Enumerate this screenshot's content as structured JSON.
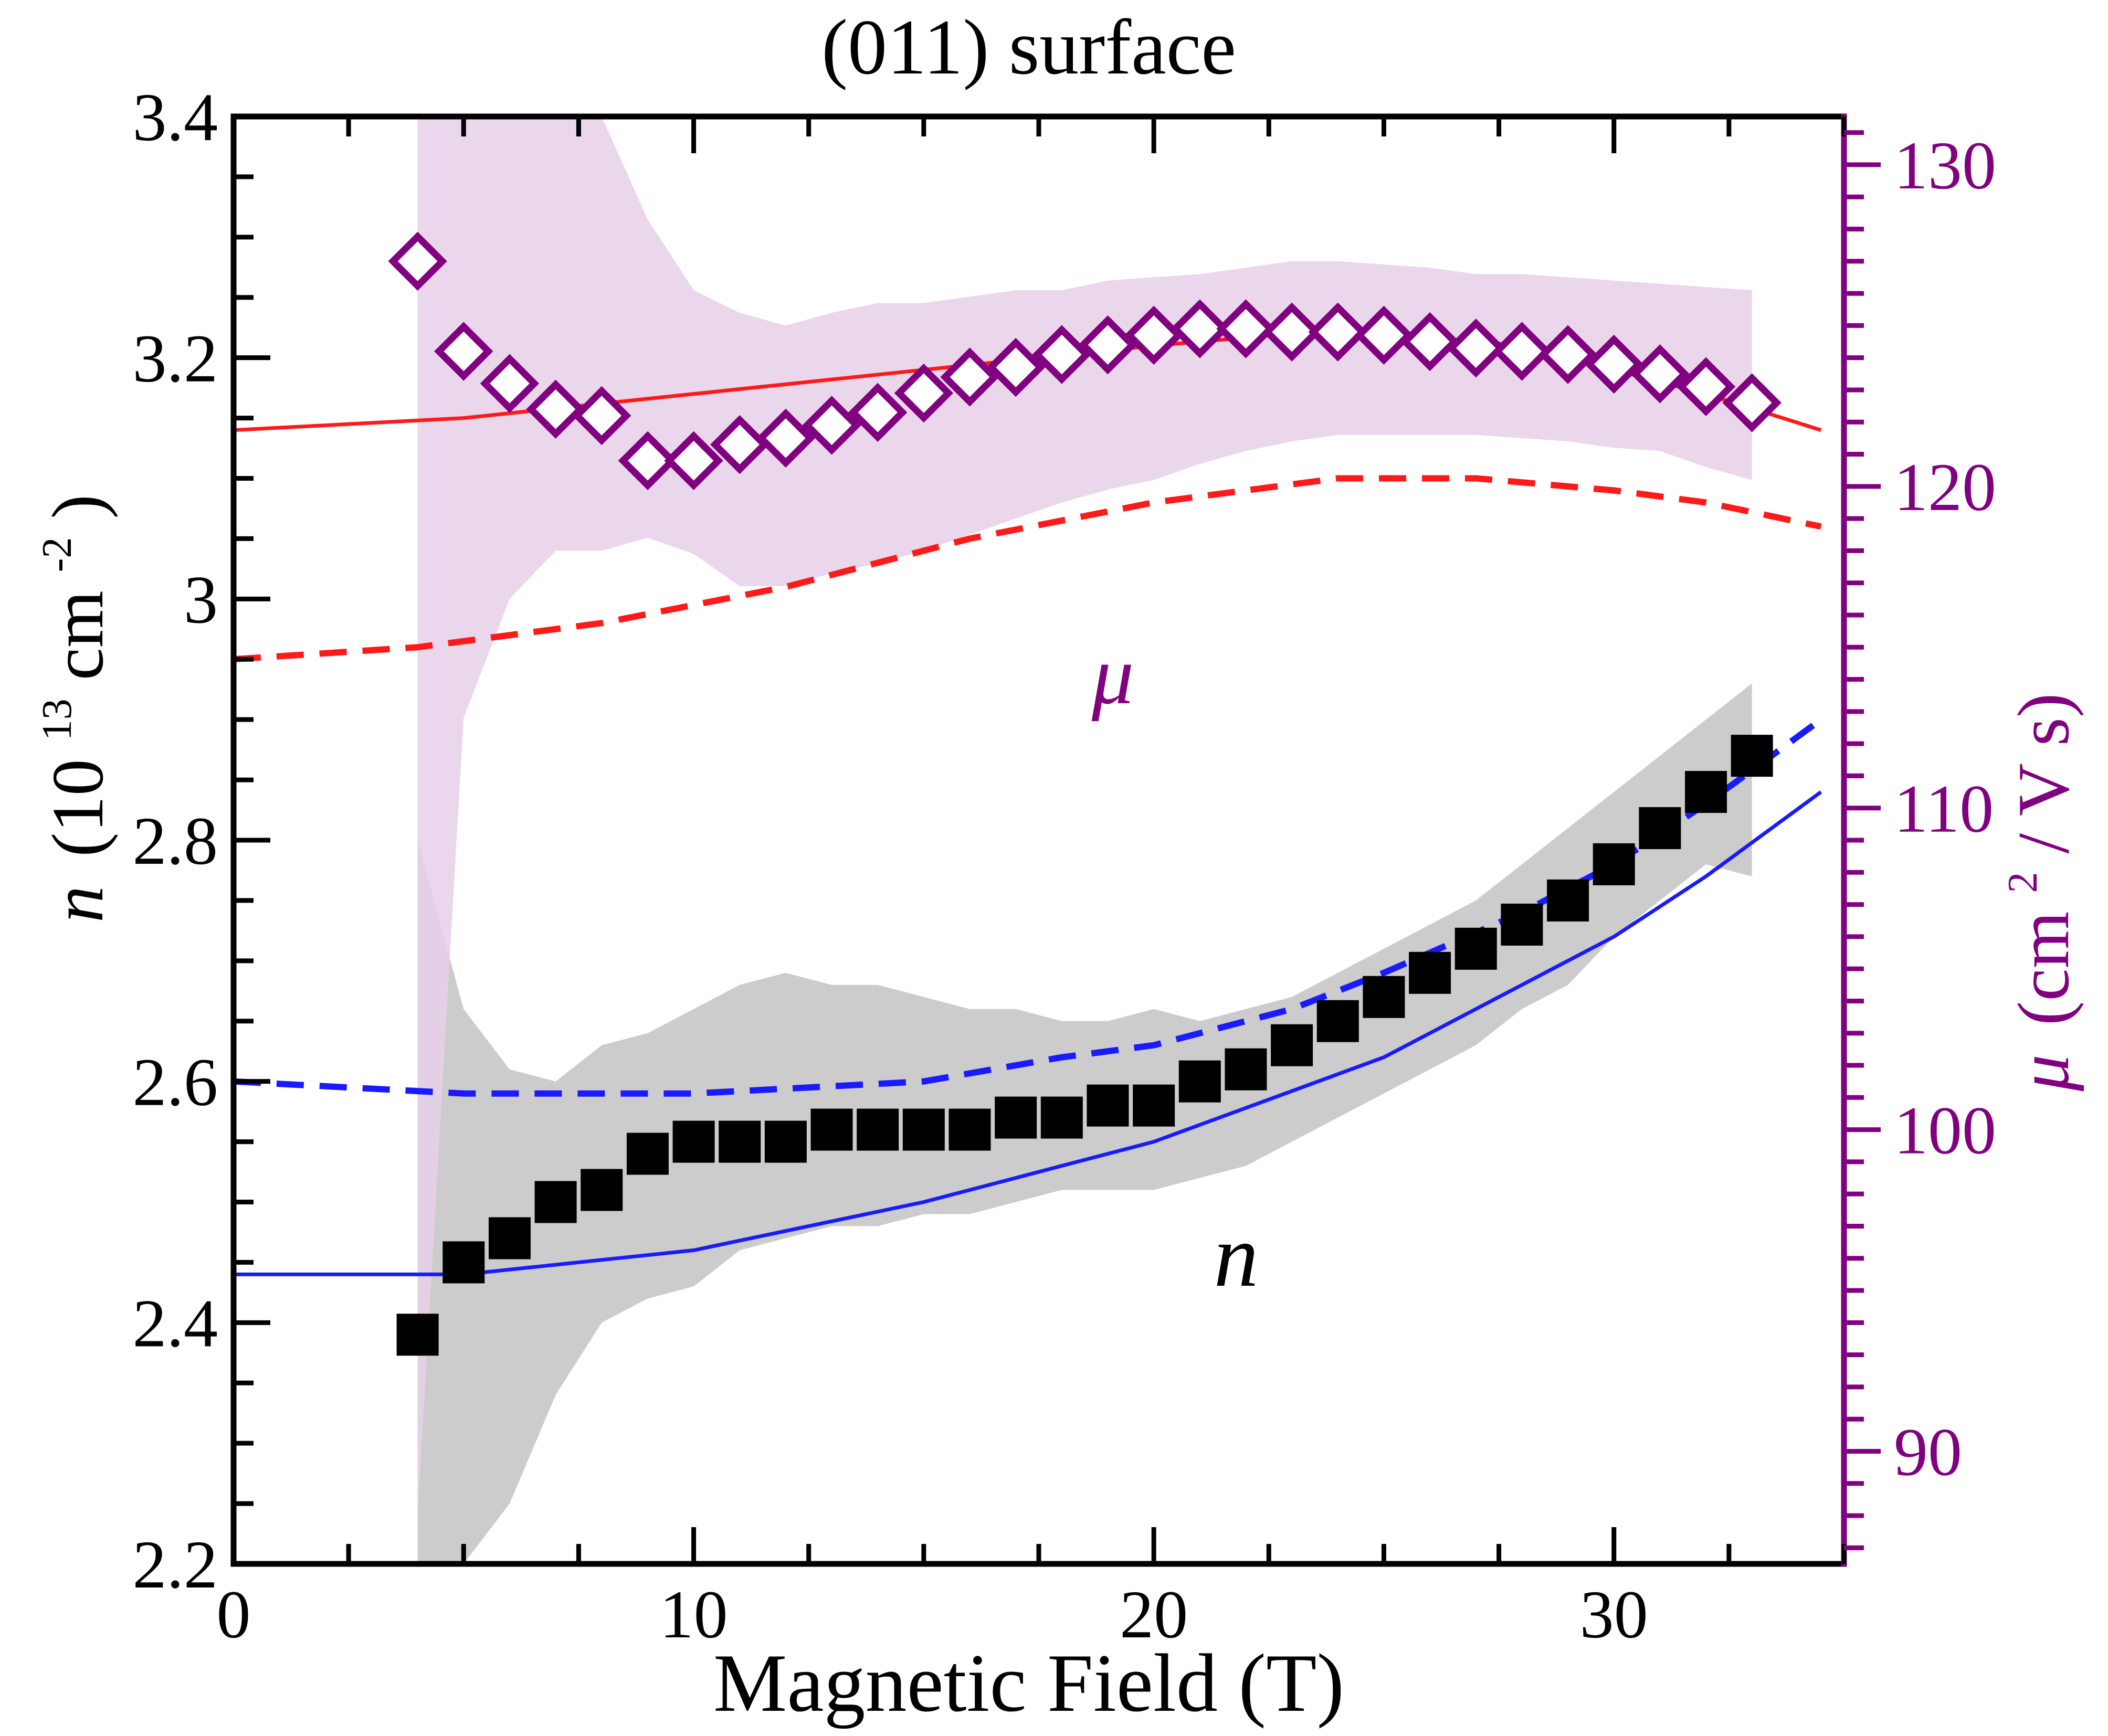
{
  "chart_data": {
    "type": "scatter",
    "title": "(011) surface",
    "xlabel": "Magnetic Field (T)",
    "ylabel_left": {
      "symbol": "n",
      "base": "(10",
      "exponent": "13",
      "unit": " cm",
      "unit_exponent": "-2",
      "close": ")"
    },
    "ylabel_right": {
      "symbol": "μ",
      "base": "(cm",
      "exponent": "2",
      "rest": " / V s)"
    },
    "xlim": [
      0,
      35
    ],
    "ylim_left": [
      2.2,
      3.4
    ],
    "ylim_right": [
      86.5,
      131.5
    ],
    "x_ticks": [
      0,
      10,
      20,
      30
    ],
    "y_left_ticks": [
      2.2,
      2.4,
      2.6,
      2.8,
      3.0,
      3.2,
      3.4
    ],
    "y_left_tick_labels": [
      "2.2",
      "2.4",
      "2.6",
      "2.8",
      "3",
      "3.2",
      "3.4"
    ],
    "y_right_ticks": [
      90,
      100,
      110,
      120,
      130
    ],
    "y_right_tick_labels": [
      "90",
      "100",
      "110",
      "120",
      "130"
    ],
    "annotations": {
      "mu": "μ",
      "n": "n"
    },
    "colors": {
      "axis": "#000000",
      "right_axis": "#800080",
      "mu_markers": "#800080",
      "mu_band": "#e8d0e8",
      "n_markers": "#000000",
      "n_band": "#cccccc",
      "red_lines": "#ff1a1a",
      "blue_lines": "#1a1aff"
    },
    "series": [
      {
        "name": "n data",
        "axis": "left",
        "marker": "square",
        "x": [
          4,
          5,
          6,
          7,
          8,
          9,
          10,
          11,
          12,
          13,
          14,
          15,
          16,
          17,
          18,
          19,
          20,
          21,
          22,
          23,
          24,
          25,
          26,
          27,
          28,
          29,
          30,
          31,
          32,
          33
        ],
        "y": [
          2.39,
          2.45,
          2.47,
          2.5,
          2.51,
          2.54,
          2.55,
          2.55,
          2.55,
          2.56,
          2.56,
          2.56,
          2.56,
          2.57,
          2.57,
          2.58,
          2.58,
          2.6,
          2.61,
          2.63,
          2.65,
          2.67,
          2.69,
          2.71,
          2.73,
          2.75,
          2.78,
          2.81,
          2.84,
          2.87
        ]
      },
      {
        "name": "μ data",
        "axis": "right",
        "marker": "diamond",
        "x": [
          4,
          5,
          6,
          7,
          8,
          9,
          10,
          11,
          12,
          13,
          14,
          15,
          16,
          17,
          18,
          19,
          20,
          21,
          22,
          23,
          24,
          25,
          26,
          27,
          28,
          29,
          30,
          31,
          32,
          33
        ],
        "y": [
          127,
          124.2,
          123.2,
          122.4,
          122.2,
          120.8,
          120.8,
          121.3,
          121.5,
          121.9,
          122.3,
          122.9,
          123.4,
          123.7,
          124.1,
          124.4,
          124.7,
          124.9,
          124.9,
          124.8,
          124.8,
          124.7,
          124.5,
          124.3,
          124.2,
          124.1,
          123.8,
          123.5,
          123.1,
          122.6
        ]
      },
      {
        "name": "n band",
        "axis": "left",
        "kind": "band",
        "x": [
          4,
          5,
          6,
          7,
          8,
          9,
          10,
          11,
          12,
          13,
          14,
          15,
          16,
          17,
          18,
          19,
          20,
          21,
          22,
          23,
          24,
          25,
          26,
          27,
          28,
          29,
          30,
          31,
          32,
          33
        ],
        "upper": [
          2.8,
          2.66,
          2.61,
          2.6,
          2.63,
          2.64,
          2.66,
          2.68,
          2.69,
          2.68,
          2.68,
          2.67,
          2.66,
          2.66,
          2.65,
          2.65,
          2.66,
          2.65,
          2.66,
          2.67,
          2.69,
          2.71,
          2.73,
          2.75,
          2.78,
          2.81,
          2.84,
          2.87,
          2.9,
          2.93
        ],
        "lower": [
          2.2,
          2.2,
          2.25,
          2.34,
          2.4,
          2.42,
          2.43,
          2.46,
          2.47,
          2.48,
          2.48,
          2.49,
          2.49,
          2.5,
          2.51,
          2.51,
          2.51,
          2.52,
          2.53,
          2.55,
          2.57,
          2.59,
          2.61,
          2.63,
          2.66,
          2.68,
          2.72,
          2.75,
          2.78,
          2.77
        ]
      },
      {
        "name": "μ band",
        "axis": "right",
        "kind": "band",
        "x": [
          4,
          5,
          6,
          7,
          8,
          9,
          10,
          11,
          12,
          13,
          14,
          15,
          16,
          17,
          18,
          19,
          20,
          21,
          22,
          23,
          24,
          25,
          26,
          27,
          28,
          29,
          30,
          31,
          32,
          33
        ],
        "upper": [
          131.5,
          131.5,
          131.5,
          131.5,
          131.5,
          128.3,
          126.1,
          125.4,
          125.0,
          125.4,
          125.7,
          125.7,
          125.9,
          126.1,
          126.1,
          126.4,
          126.5,
          126.6,
          126.8,
          127.0,
          127.0,
          126.9,
          126.8,
          126.6,
          126.6,
          126.5,
          126.4,
          126.3,
          126.2,
          126.1
        ],
        "lower": [
          88.0,
          112.8,
          116.5,
          118.0,
          118.0,
          118.4,
          117.9,
          116.9,
          116.9,
          117.3,
          117.6,
          118.0,
          118.5,
          119.0,
          119.5,
          119.9,
          120.2,
          120.7,
          121.1,
          121.4,
          121.6,
          121.6,
          121.6,
          121.6,
          121.5,
          121.4,
          121.2,
          121.1,
          120.6,
          120.2
        ]
      },
      {
        "name": "red solid",
        "axis": "left",
        "kind": "line",
        "dash": "solid",
        "x": [
          0,
          5,
          10,
          15,
          20,
          23,
          25,
          28,
          30,
          32,
          34.5
        ],
        "y": [
          3.14,
          3.15,
          3.17,
          3.19,
          3.21,
          3.22,
          3.22,
          3.21,
          3.19,
          3.17,
          3.14
        ]
      },
      {
        "name": "red dashed",
        "axis": "left",
        "kind": "line",
        "dash": "dashed",
        "x": [
          0,
          4,
          8,
          12,
          16,
          20,
          24,
          27,
          30,
          32,
          34.5
        ],
        "y": [
          2.95,
          2.96,
          2.98,
          3.01,
          3.05,
          3.08,
          3.1,
          3.1,
          3.09,
          3.08,
          3.06
        ]
      },
      {
        "name": "blue solid",
        "axis": "left",
        "kind": "line",
        "dash": "solid",
        "x": [
          0,
          5,
          10,
          15,
          20,
          25,
          28,
          30,
          32,
          34.5
        ],
        "y": [
          2.44,
          2.44,
          2.46,
          2.5,
          2.55,
          2.62,
          2.68,
          2.72,
          2.77,
          2.84
        ]
      },
      {
        "name": "blue dashed",
        "axis": "left",
        "kind": "line",
        "dash": "dashed",
        "x": [
          0,
          5,
          10,
          15,
          18,
          20,
          23,
          25,
          28,
          30,
          32,
          34.5
        ],
        "y": [
          2.6,
          2.59,
          2.59,
          2.6,
          2.62,
          2.63,
          2.66,
          2.69,
          2.74,
          2.78,
          2.83,
          2.9
        ]
      }
    ]
  }
}
